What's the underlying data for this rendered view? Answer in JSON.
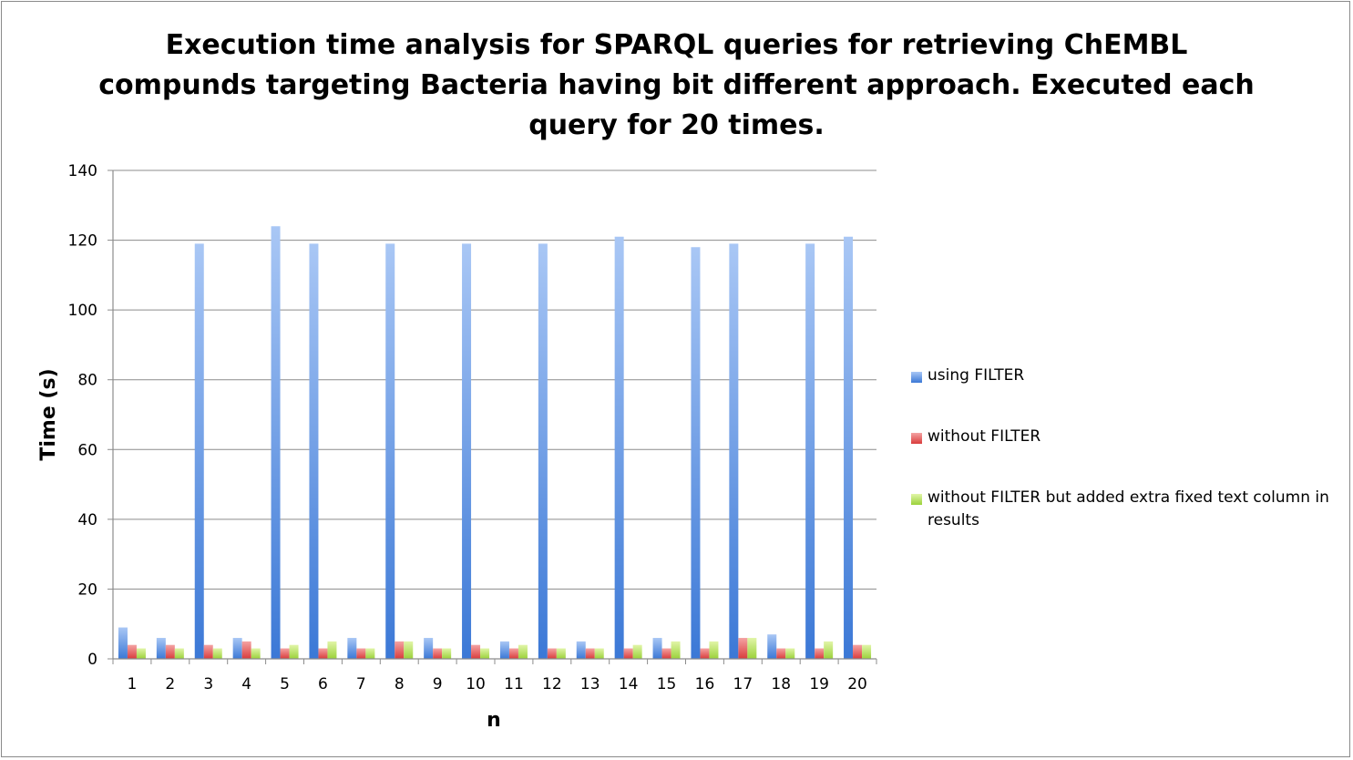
{
  "chart_data": {
    "type": "bar",
    "title_lines": [
      "Execution time analysis for SPARQL queries for retrieving ChEMBL",
      "compunds targeting Bacteria having bit different approach. Executed each",
      "query for 20 times."
    ],
    "xlabel": "n",
    "ylabel": "Time (s)",
    "ylim": [
      0,
      140
    ],
    "yticks": [
      0,
      20,
      40,
      60,
      80,
      100,
      120,
      140
    ],
    "grid": true,
    "legend_position": "right",
    "categories": [
      "1",
      "2",
      "3",
      "4",
      "5",
      "6",
      "7",
      "8",
      "9",
      "10",
      "11",
      "12",
      "13",
      "14",
      "15",
      "16",
      "17",
      "18",
      "19",
      "20"
    ],
    "series": [
      {
        "name": "using FILTER",
        "color": "#4f81bd",
        "values": [
          9,
          6,
          119,
          6,
          124,
          119,
          6,
          119,
          6,
          119,
          5,
          119,
          5,
          121,
          6,
          118,
          119,
          7,
          119,
          121
        ]
      },
      {
        "name": "without FILTER",
        "color": "#c0504d",
        "values": [
          4,
          4,
          4,
          5,
          3,
          3,
          3,
          5,
          3,
          4,
          3,
          3,
          3,
          3,
          3,
          3,
          6,
          3,
          3,
          4
        ]
      },
      {
        "name": "without FILTER but added extra fixed text column in results",
        "color": "#9bbb59",
        "values": [
          3,
          3,
          3,
          3,
          4,
          5,
          3,
          5,
          3,
          3,
          4,
          3,
          3,
          4,
          5,
          5,
          6,
          3,
          5,
          4
        ]
      }
    ]
  }
}
